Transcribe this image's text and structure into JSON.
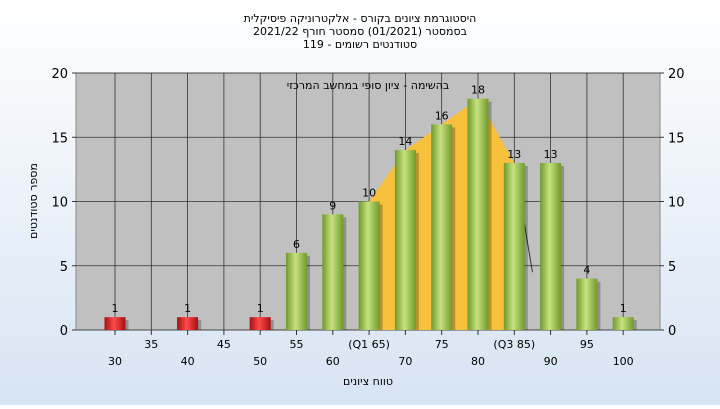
{
  "chart_data": {
    "type": "bar",
    "title_lines": [
      "היסטוגרמת ציונים בקורס - אלקטרוניקה פיסיקלית",
      "בסמסטר  (01/2021)  סמסטר חורף 2021/22",
      "סטודנטים רשומים - 119"
    ],
    "annotation": "בהשימה - ציון סופי במחשב המרכזי",
    "ylabel": "מספר סטודנטים",
    "xlabel": "טווח ציונים",
    "ylim": [
      0,
      20
    ],
    "yticks": [
      "0",
      "5",
      "10",
      "15",
      "20"
    ],
    "categories": [
      30,
      35,
      40,
      45,
      50,
      55,
      60,
      65,
      70,
      75,
      80,
      85,
      90,
      95,
      100
    ],
    "xtick_labels_low": [
      "30",
      "40",
      "50",
      "60",
      "70",
      "80",
      "90",
      "100"
    ],
    "xtick_labels_high": [
      "35",
      "45",
      "55",
      "(Q1 65)",
      "75",
      "(Q3 85)",
      "95"
    ],
    "values": [
      1,
      0,
      1,
      0,
      1,
      6,
      9,
      10,
      14,
      16,
      18,
      13,
      13,
      4,
      1
    ],
    "bar_labels": [
      "1",
      "",
      "1",
      "",
      "1",
      "6",
      "9",
      "10",
      "14",
      "16",
      "18",
      "13",
      "13",
      "4",
      "1"
    ],
    "failing_categories": [
      30,
      40,
      50
    ],
    "iqr_band": {
      "x": [
        65,
        70,
        75,
        80,
        85
      ],
      "y": [
        10,
        14,
        16,
        18,
        13
      ]
    },
    "whisker_line": {
      "x": [
        85,
        87.5
      ],
      "y": [
        13,
        4.5
      ]
    },
    "colors": {
      "plot_bg": "#c0c0c0",
      "grid": "#333333",
      "bar_pass": "#9cc34f",
      "bar_fail": "#dd2222",
      "band": "#f7c13b"
    }
  }
}
